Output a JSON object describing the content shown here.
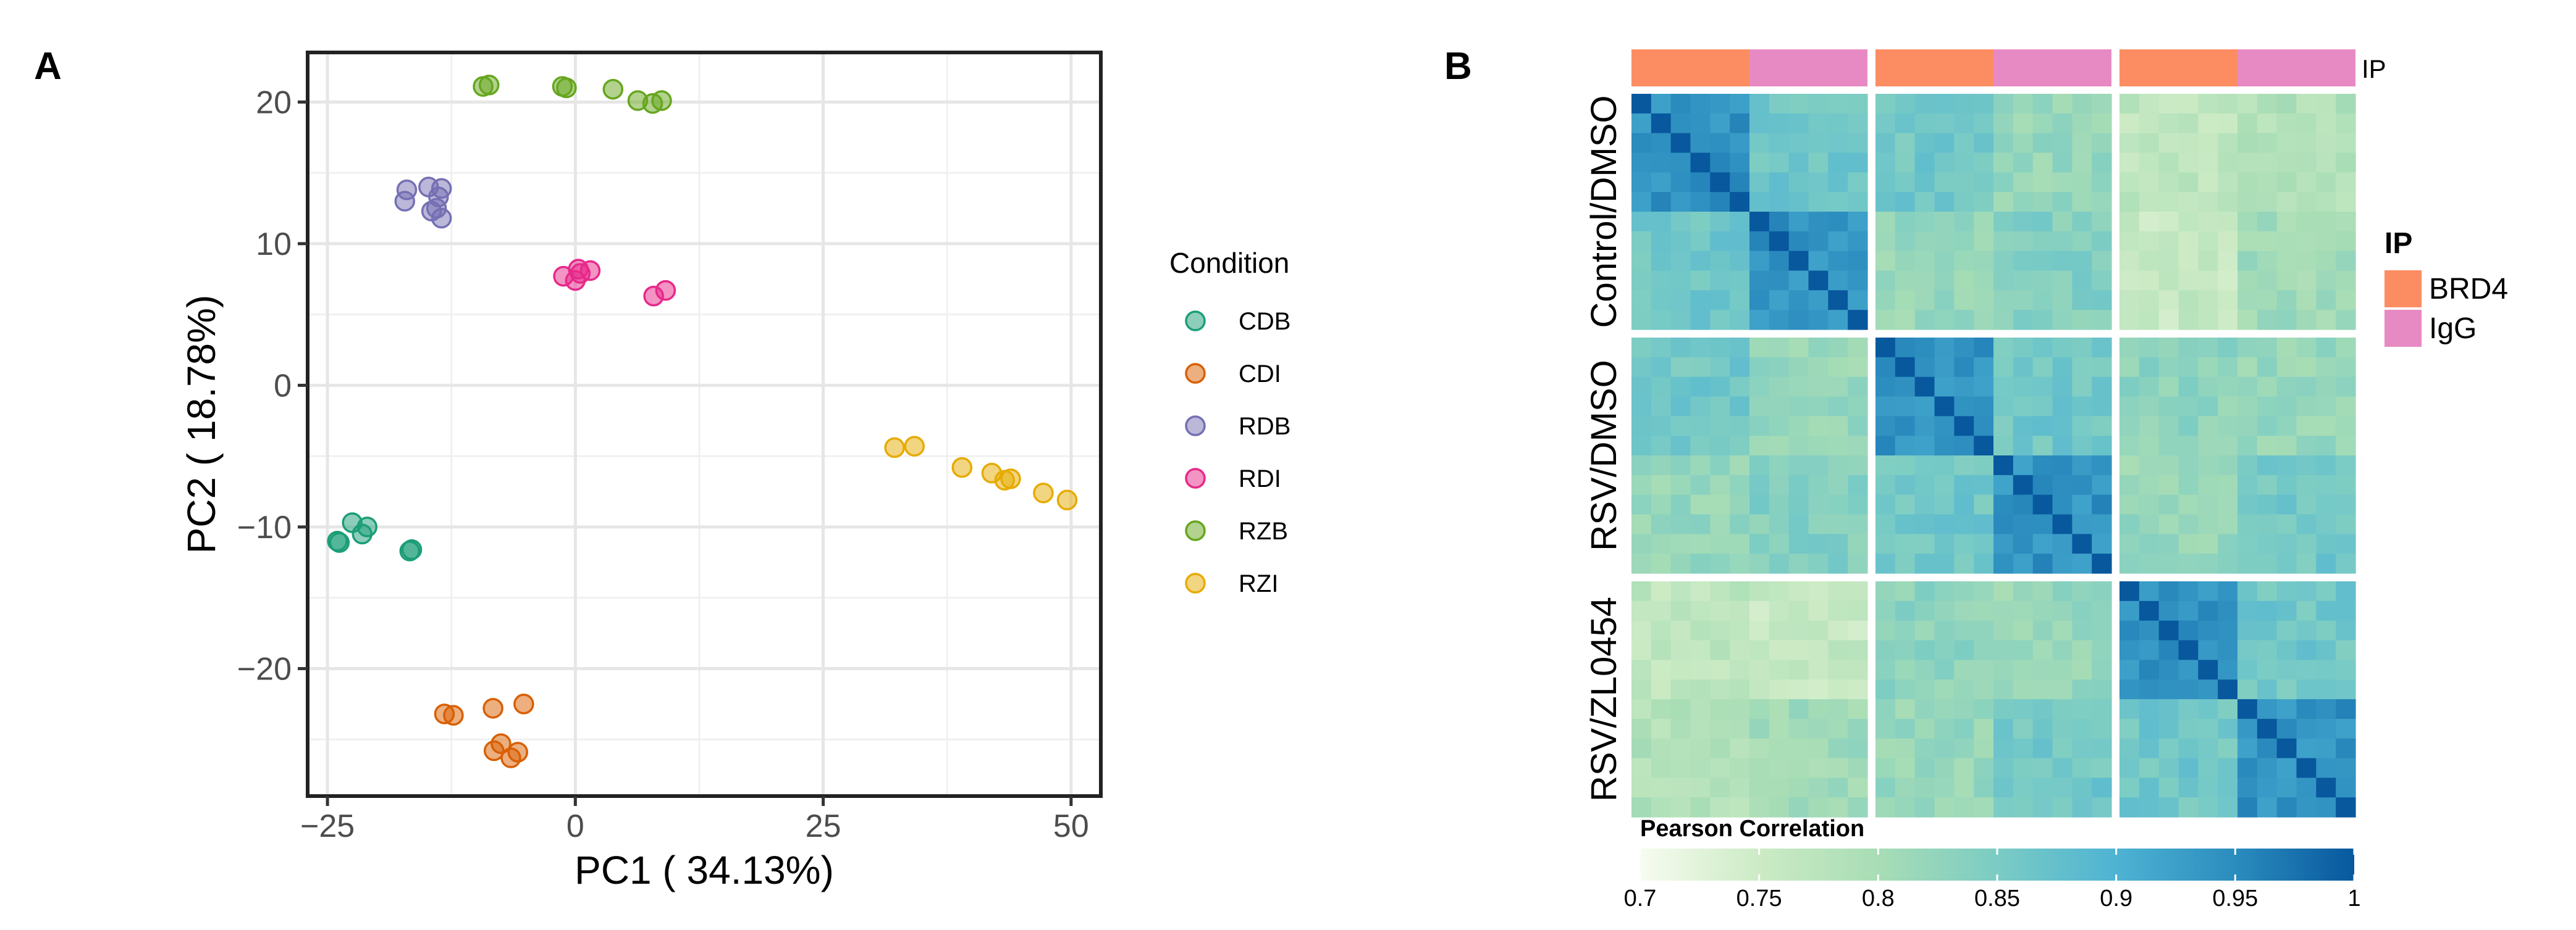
{
  "panels": {
    "a_label": "A",
    "b_label": "B"
  },
  "chart_data": [
    {
      "type": "scatter",
      "title": "",
      "xlabel": "PC1 ( 34.13%)",
      "ylabel": "PC2 ( 18.78%)",
      "xlim": [
        -27,
        53
      ],
      "ylim": [
        -29,
        23.5
      ],
      "xticks": [
        -25,
        0,
        25,
        50
      ],
      "xtick_labels": [
        "−25",
        "0",
        "25",
        "50"
      ],
      "yticks": [
        -20,
        -10,
        0,
        10,
        20
      ],
      "ytick_labels": [
        "−20",
        "−10",
        "0",
        "10",
        "20"
      ],
      "grid": true,
      "legend_title": "Condition",
      "legend_position": "right",
      "series": [
        {
          "name": "CDB",
          "color": "#1b9e77",
          "points": [
            [
              -24.0,
              -11.0
            ],
            [
              -22.5,
              -9.7
            ],
            [
              -21.5,
              -10.5
            ],
            [
              -21.0,
              -10.0
            ],
            [
              -16.5,
              -11.6
            ],
            [
              -23.8,
              -11.1
            ],
            [
              -16.7,
              -11.7
            ]
          ]
        },
        {
          "name": "CDI",
          "color": "#d95f02",
          "points": [
            [
              -13.2,
              -23.2
            ],
            [
              -12.3,
              -23.3
            ],
            [
              -8.3,
              -22.8
            ],
            [
              -5.2,
              -22.5
            ],
            [
              -7.5,
              -25.3
            ],
            [
              -8.2,
              -25.8
            ],
            [
              -6.5,
              -26.3
            ],
            [
              -5.8,
              -25.9
            ]
          ]
        },
        {
          "name": "RDB",
          "color": "#7570b3",
          "points": [
            [
              -17.0,
              13.8
            ],
            [
              -17.2,
              13.0
            ],
            [
              -14.8,
              14.0
            ],
            [
              -13.5,
              13.9
            ],
            [
              -13.8,
              13.3
            ],
            [
              -14.0,
              12.5
            ],
            [
              -13.5,
              11.8
            ],
            [
              -14.5,
              12.3
            ]
          ]
        },
        {
          "name": "RDI",
          "color": "#e7298a",
          "points": [
            [
              -1.2,
              7.7
            ],
            [
              0.0,
              7.4
            ],
            [
              0.3,
              8.2
            ],
            [
              1.5,
              8.1
            ],
            [
              0.5,
              7.9
            ],
            [
              7.9,
              6.3
            ],
            [
              9.1,
              6.7
            ]
          ]
        },
        {
          "name": "RZB",
          "color": "#66a61e",
          "points": [
            [
              -9.3,
              21.1
            ],
            [
              -8.7,
              21.2
            ],
            [
              -1.3,
              21.1
            ],
            [
              -0.9,
              21.0
            ],
            [
              3.8,
              20.9
            ],
            [
              6.3,
              20.1
            ],
            [
              7.8,
              19.9
            ],
            [
              8.7,
              20.1
            ]
          ]
        },
        {
          "name": "RZI",
          "color": "#e6ab02",
          "points": [
            [
              32.2,
              -4.4
            ],
            [
              34.2,
              -4.3
            ],
            [
              39.0,
              -5.8
            ],
            [
              42.0,
              -6.2
            ],
            [
              43.3,
              -6.7
            ],
            [
              43.9,
              -6.6
            ],
            [
              47.2,
              -7.6
            ],
            [
              49.6,
              -8.1
            ]
          ]
        }
      ]
    },
    {
      "type": "heatmap",
      "title": "",
      "row_groups": [
        "Control/DMSO",
        "RSV/DMSO",
        "RSV/ZL0454"
      ],
      "annotation_label": "IP",
      "annotation_legend_title": "IP",
      "ip_groups": [
        {
          "name": "BRD4",
          "color": "#fc8d62"
        },
        {
          "name": "IgG",
          "color": "#e78ac3"
        }
      ],
      "block_size": 12,
      "within_block_same_ip_value": 0.94,
      "within_block_cross_ip_value": 0.86,
      "matrix_values": [
        [
          0.95,
          0.86,
          0.86,
          0.82,
          0.77,
          0.79
        ],
        [
          0.86,
          0.95,
          0.82,
          0.84,
          0.76,
          0.81
        ],
        [
          0.86,
          0.82,
          0.95,
          0.87,
          0.83,
          0.82
        ],
        [
          0.82,
          0.84,
          0.87,
          0.95,
          0.82,
          0.86
        ],
        [
          0.77,
          0.76,
          0.83,
          0.82,
          0.95,
          0.83
        ],
        [
          0.79,
          0.81,
          0.82,
          0.86,
          0.83,
          0.95
        ]
      ],
      "colorbar": {
        "title": "Pearson Correlation",
        "min": 0.7,
        "max": 1.0,
        "ticks": [
          0.7,
          0.75,
          0.8,
          0.85,
          0.9,
          0.95,
          1.0
        ],
        "tick_labels": [
          "0.7",
          "0.75",
          "0.8",
          "0.85",
          "0.9",
          "0.95",
          "1"
        ],
        "stops": [
          "#f7fcf0",
          "#ccebc5",
          "#a8ddb5",
          "#7bccc4",
          "#4eb3d3",
          "#2b8cbe",
          "#08589e"
        ]
      }
    }
  ]
}
